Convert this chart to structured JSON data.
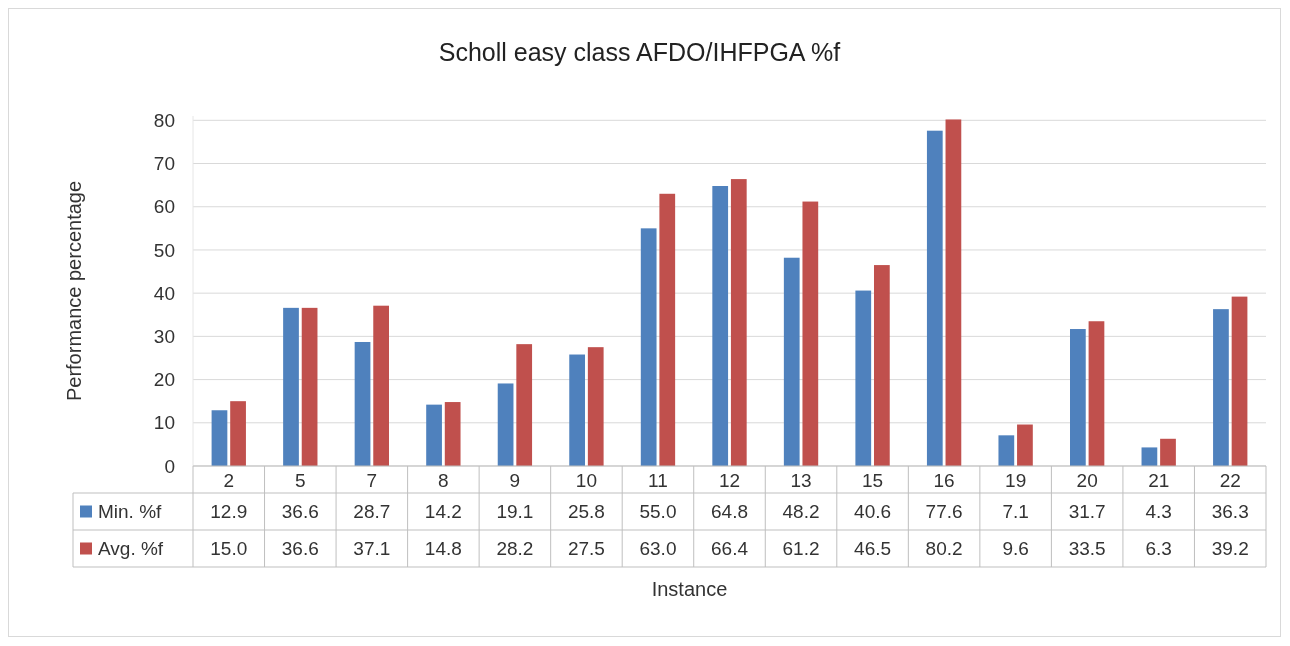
{
  "chart_data": {
    "type": "bar",
    "title": "Scholl easy class AFDO/IHFPGA %f",
    "xlabel": "Instance",
    "ylabel": "Performance percentage",
    "categories": [
      "2",
      "5",
      "7",
      "8",
      "9",
      "10",
      "11",
      "12",
      "13",
      "15",
      "16",
      "19",
      "20",
      "21",
      "22"
    ],
    "series": [
      {
        "name": "Min. %f",
        "color": "#4f81bd",
        "values": [
          12.9,
          36.6,
          28.7,
          14.2,
          19.1,
          25.8,
          55.0,
          64.8,
          48.2,
          40.6,
          77.6,
          7.1,
          31.7,
          4.3,
          36.3
        ],
        "value_labels": [
          "12.9",
          "36.6",
          "28.7",
          "14.2",
          "19.1",
          "25.8",
          "55.0",
          "64.8",
          "48.2",
          "40.6",
          "77.6",
          "7.1",
          "31.7",
          "4.3",
          "36.3"
        ]
      },
      {
        "name": "Avg. %f",
        "color": "#c0504d",
        "values": [
          15.0,
          36.6,
          37.1,
          14.8,
          28.2,
          27.5,
          63.0,
          66.4,
          61.2,
          46.5,
          80.2,
          9.6,
          33.5,
          6.3,
          39.2
        ],
        "value_labels": [
          "15.0",
          "36.6",
          "37.1",
          "14.8",
          "28.2",
          "27.5",
          "63.0",
          "66.4",
          "61.2",
          "46.5",
          "80.2",
          "9.6",
          "33.5",
          "6.3",
          "39.2"
        ]
      }
    ],
    "ylim": [
      0,
      81
    ],
    "yticks": [
      0,
      10,
      20,
      30,
      40,
      50,
      60,
      70,
      80
    ],
    "grid": "y",
    "legend": "bottom"
  }
}
